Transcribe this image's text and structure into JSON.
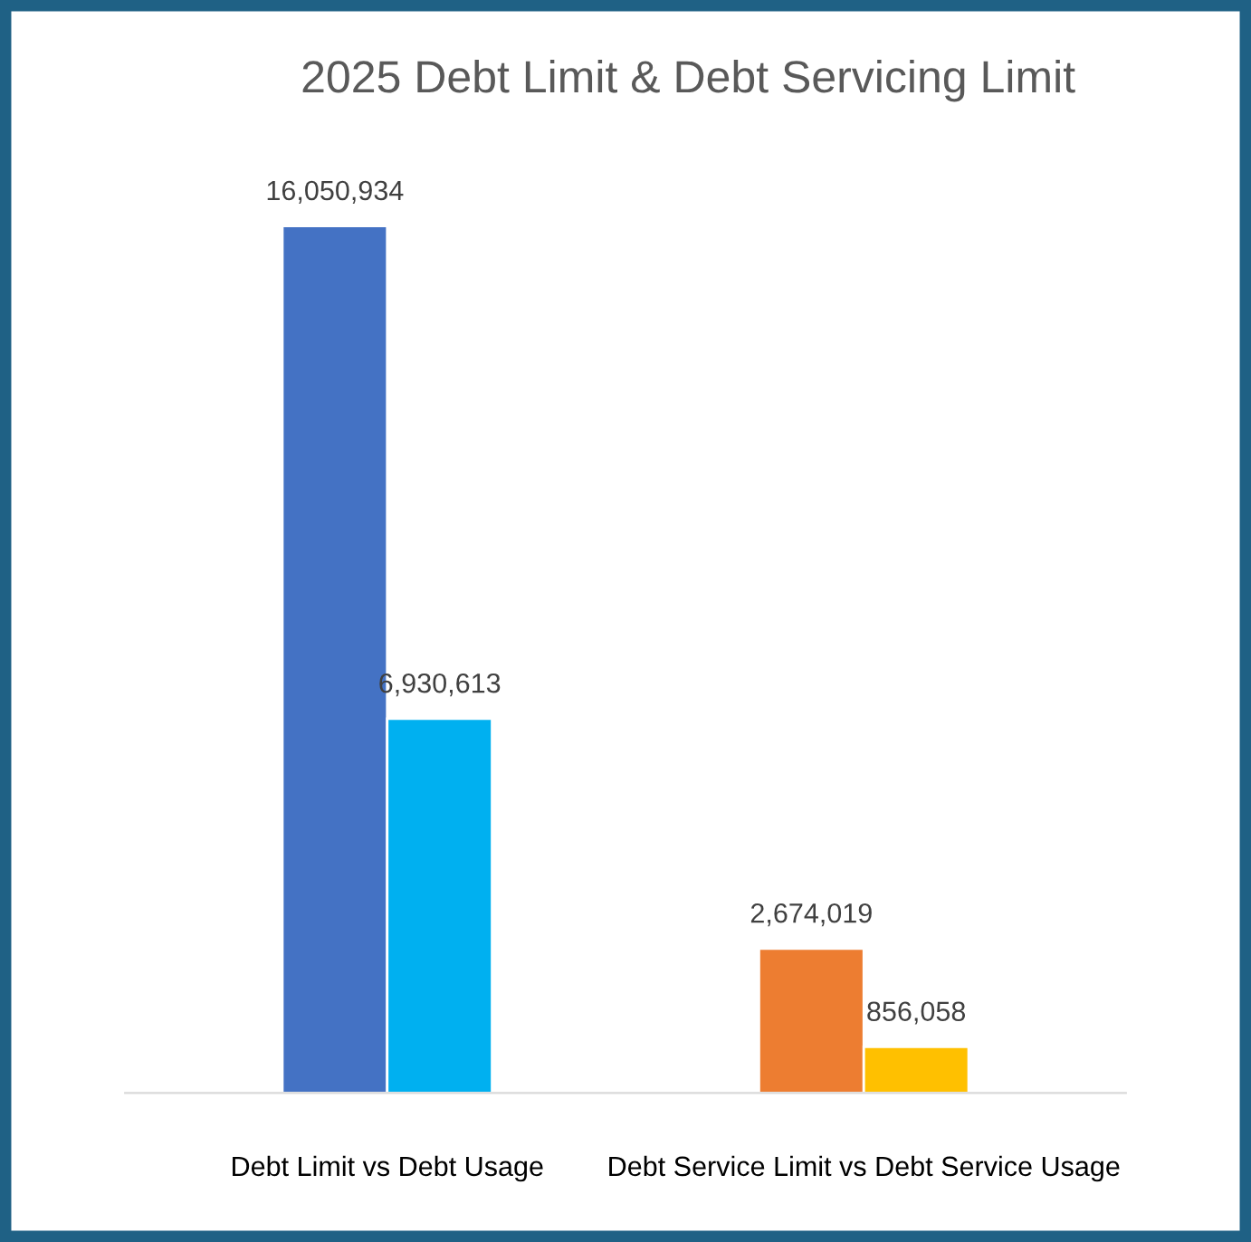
{
  "chart_data": {
    "type": "bar",
    "title": "2025 Debt Limit & Debt Servicing Limit",
    "categories": [
      "Debt Limit vs Debt Usage",
      "Debt Service Limit vs Debt Service Usage"
    ],
    "series": [
      {
        "colors": [
          "#4472c4",
          "#ed7d31"
        ],
        "values": [
          16050934,
          2674019
        ],
        "value_labels": [
          "16,050,934",
          "2,674,019"
        ]
      },
      {
        "colors": [
          "#00b0f0",
          "#ffc000"
        ],
        "values": [
          6930613,
          856058
        ],
        "value_labels": [
          "6,930,613",
          "856,058"
        ]
      }
    ],
    "grid": false,
    "legend": false
  }
}
